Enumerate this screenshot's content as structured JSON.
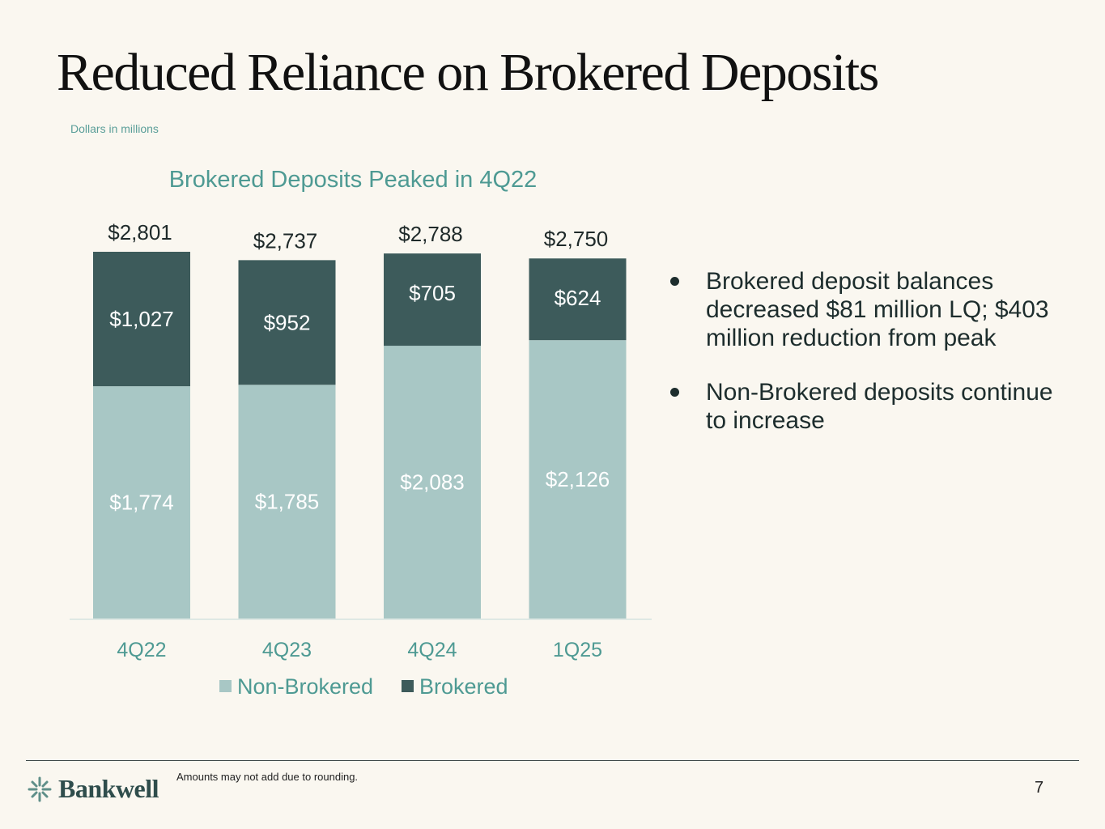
{
  "title": "Reduced Reliance on Brokered Deposits",
  "units_note": "Dollars in millions",
  "chart_data": {
    "type": "bar",
    "stacked": true,
    "title": "Brokered Deposits Peaked in 4Q22",
    "categories": [
      "4Q22",
      "4Q23",
      "4Q24",
      "1Q25"
    ],
    "series": [
      {
        "name": "Non-Brokered",
        "values": [
          1774,
          1785,
          2083,
          2126
        ],
        "labels": [
          "$1,774",
          "$1,785",
          "$2,083",
          "$2,126"
        ],
        "color": "#a8c7c5"
      },
      {
        "name": "Brokered",
        "values": [
          1027,
          952,
          705,
          624
        ],
        "labels": [
          "$1,027",
          "$952",
          "$705",
          "$624"
        ],
        "color": "#3d5b5b"
      }
    ],
    "totals": [
      2801,
      2737,
      2788,
      2750
    ],
    "total_labels": [
      "$2,801",
      "$2,737",
      "$2,788",
      "$2,750"
    ],
    "ylim": [
      0,
      2801
    ],
    "grid": false,
    "legend_position": "bottom",
    "title_color": "#4e9a93",
    "category_label_color": "#4e9a93"
  },
  "bullets": [
    "Brokered deposit balances decreased $81 million LQ; $403 million reduction from peak",
    "Non-Brokered deposits continue to increase"
  ],
  "footer": {
    "brand": "Bankwell",
    "logo_icon": "bankwell-leaf-icon",
    "note": "Amounts may not add due to rounding.",
    "page_number": "7"
  }
}
